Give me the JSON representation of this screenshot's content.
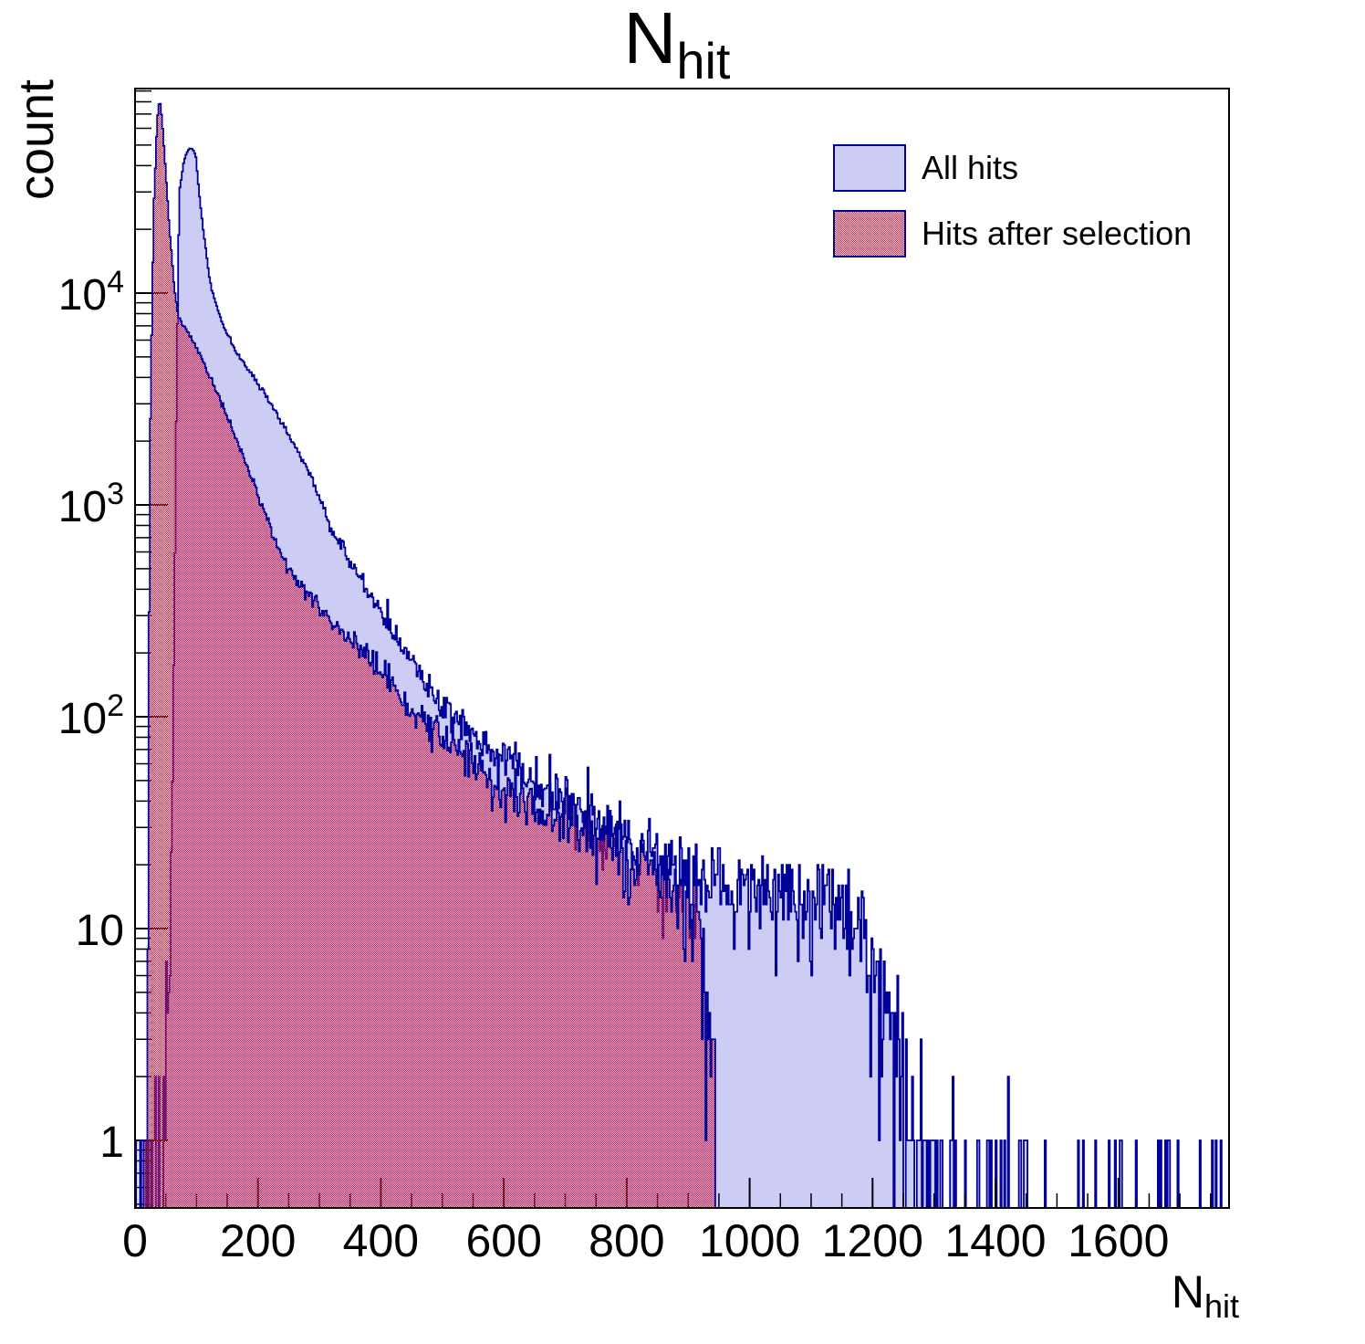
{
  "title": {
    "main": "N",
    "sub": "hit"
  },
  "y_axis": {
    "label": "count",
    "scale": "log",
    "ticks": [
      {
        "v": 1,
        "t": "1"
      },
      {
        "v": 10,
        "t": "10"
      },
      {
        "v": 100,
        "t": "10",
        "e": "2"
      },
      {
        "v": 1000,
        "t": "10",
        "e": "3"
      },
      {
        "v": 10000,
        "t": "10",
        "e": "4"
      }
    ]
  },
  "x_axis": {
    "label_main": "N",
    "label_sub": "hit",
    "major_step": 200,
    "minor_step": 50,
    "ticks": [
      {
        "v": 0,
        "t": "0"
      },
      {
        "v": 200,
        "t": "200"
      },
      {
        "v": 400,
        "t": "400"
      },
      {
        "v": 600,
        "t": "600"
      },
      {
        "v": 800,
        "t": "800"
      },
      {
        "v": 1000,
        "t": "1000"
      },
      {
        "v": 1200,
        "t": "1200"
      },
      {
        "v": 1400,
        "t": "1400"
      },
      {
        "v": 1600,
        "t": "1600"
      }
    ]
  },
  "legend": {
    "items": [
      {
        "label": "All hits",
        "swatch": "solid"
      },
      {
        "label": "Hits after selection",
        "swatch": "checker"
      }
    ]
  },
  "colors": {
    "hist_fill": "#ccccf5",
    "hist_line": "#000099",
    "selection_red": "#d6173f",
    "axis": "#000000",
    "text": "#000000"
  },
  "chart_data": {
    "type": "histogram",
    "title": "N_hit",
    "xlabel": "N_hit",
    "ylabel": "count",
    "y_scale": "log",
    "x_range": [
      0,
      1780
    ],
    "y_range": [
      0.48,
      92000
    ],
    "bin_width": 2,
    "grid": false,
    "legend_position": "top-right",
    "series": [
      {
        "name": "All hits",
        "style": "solid-fill",
        "peak_x": 90,
        "peak_y": 48000,
        "noise_seed": 1337,
        "envelope_points": [
          [
            2,
            0.7
          ],
          [
            30,
            0.7
          ],
          [
            45,
            1.2
          ],
          [
            55,
            4
          ],
          [
            60,
            25
          ],
          [
            64,
            300
          ],
          [
            67,
            2500
          ],
          [
            70,
            12000
          ],
          [
            72,
            30000
          ],
          [
            80,
            43000
          ],
          [
            88,
            48000
          ],
          [
            94,
            48000
          ],
          [
            99,
            44000
          ],
          [
            104,
            30000
          ],
          [
            112,
            19000
          ],
          [
            120,
            12500
          ],
          [
            126,
            10000
          ],
          [
            142,
            7200
          ],
          [
            160,
            5560
          ],
          [
            190,
            4100
          ],
          [
            226,
            2865
          ],
          [
            255,
            2000
          ],
          [
            281,
            1490
          ],
          [
            320,
            765
          ],
          [
            360,
            480
          ],
          [
            419,
            257
          ],
          [
            470,
            150
          ],
          [
            510,
            107
          ],
          [
            560,
            78
          ],
          [
            642,
            50
          ],
          [
            700,
            40
          ],
          [
            765,
            30
          ],
          [
            865,
            20
          ],
          [
            950,
            16
          ],
          [
            1060,
            14
          ],
          [
            1150,
            12
          ],
          [
            1185,
            9
          ],
          [
            1215,
            5
          ],
          [
            1245,
            2.5
          ],
          [
            1262,
            1.3
          ],
          [
            1290,
            0.45
          ],
          [
            1340,
            0.3
          ],
          [
            1450,
            0.22
          ],
          [
            1600,
            0.15
          ],
          [
            1780,
            0.18
          ]
        ]
      },
      {
        "name": "Hits after selection",
        "style": "checker-fill",
        "peak_x": 40,
        "peak_y": 83000,
        "noise_seed": 77,
        "envelope_points": [
          [
            19,
            0.6
          ],
          [
            21,
            8
          ],
          [
            23,
            300
          ],
          [
            25,
            2500
          ],
          [
            28,
            10000
          ],
          [
            31,
            28000
          ],
          [
            36,
            65000
          ],
          [
            40,
            83000
          ],
          [
            44,
            66000
          ],
          [
            48,
            45000
          ],
          [
            52,
            30000
          ],
          [
            56,
            20000
          ],
          [
            60,
            14500
          ],
          [
            64,
            10500
          ],
          [
            70,
            7800
          ],
          [
            104,
            5300
          ],
          [
            144,
            2865
          ],
          [
            184,
            1490
          ],
          [
            221,
            765
          ],
          [
            245,
            524
          ],
          [
            300,
            330
          ],
          [
            360,
            215
          ],
          [
            419,
            141
          ],
          [
            462,
            100
          ],
          [
            520,
            70
          ],
          [
            583,
            50
          ],
          [
            650,
            38
          ],
          [
            727,
            30
          ],
          [
            825,
            20
          ],
          [
            880,
            16
          ],
          [
            918,
            13
          ],
          [
            926,
            5
          ],
          [
            934,
            3
          ],
          [
            939,
            2
          ],
          [
            943,
            1
          ],
          [
            945,
            0.0001
          ],
          [
            1780,
            0.0001
          ]
        ]
      }
    ]
  }
}
